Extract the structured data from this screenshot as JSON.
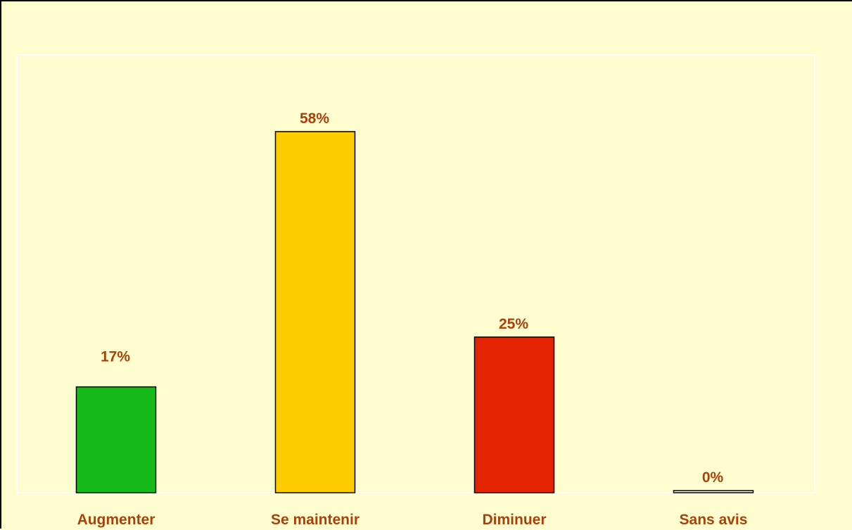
{
  "chart_data": {
    "type": "bar",
    "title": "",
    "xlabel": "",
    "ylabel": "",
    "categories": [
      "Augmenter",
      "Se maintenir",
      "Diminuer",
      "Sans avis"
    ],
    "values": [
      17,
      58,
      25,
      0
    ],
    "value_labels": [
      "17%",
      "58%",
      "25%",
      "0%"
    ],
    "unit": "%",
    "ylim": [
      0,
      70
    ],
    "grid": false,
    "legend": "none",
    "colors": [
      "#16bb1a",
      "#ffcc00",
      "#e42300",
      "#fbfbf0"
    ],
    "text_color": "#a8420a",
    "plot_background": "#fefdd0",
    "plot_border_color": "#ffffff",
    "bar_edge_color": "#000000"
  }
}
